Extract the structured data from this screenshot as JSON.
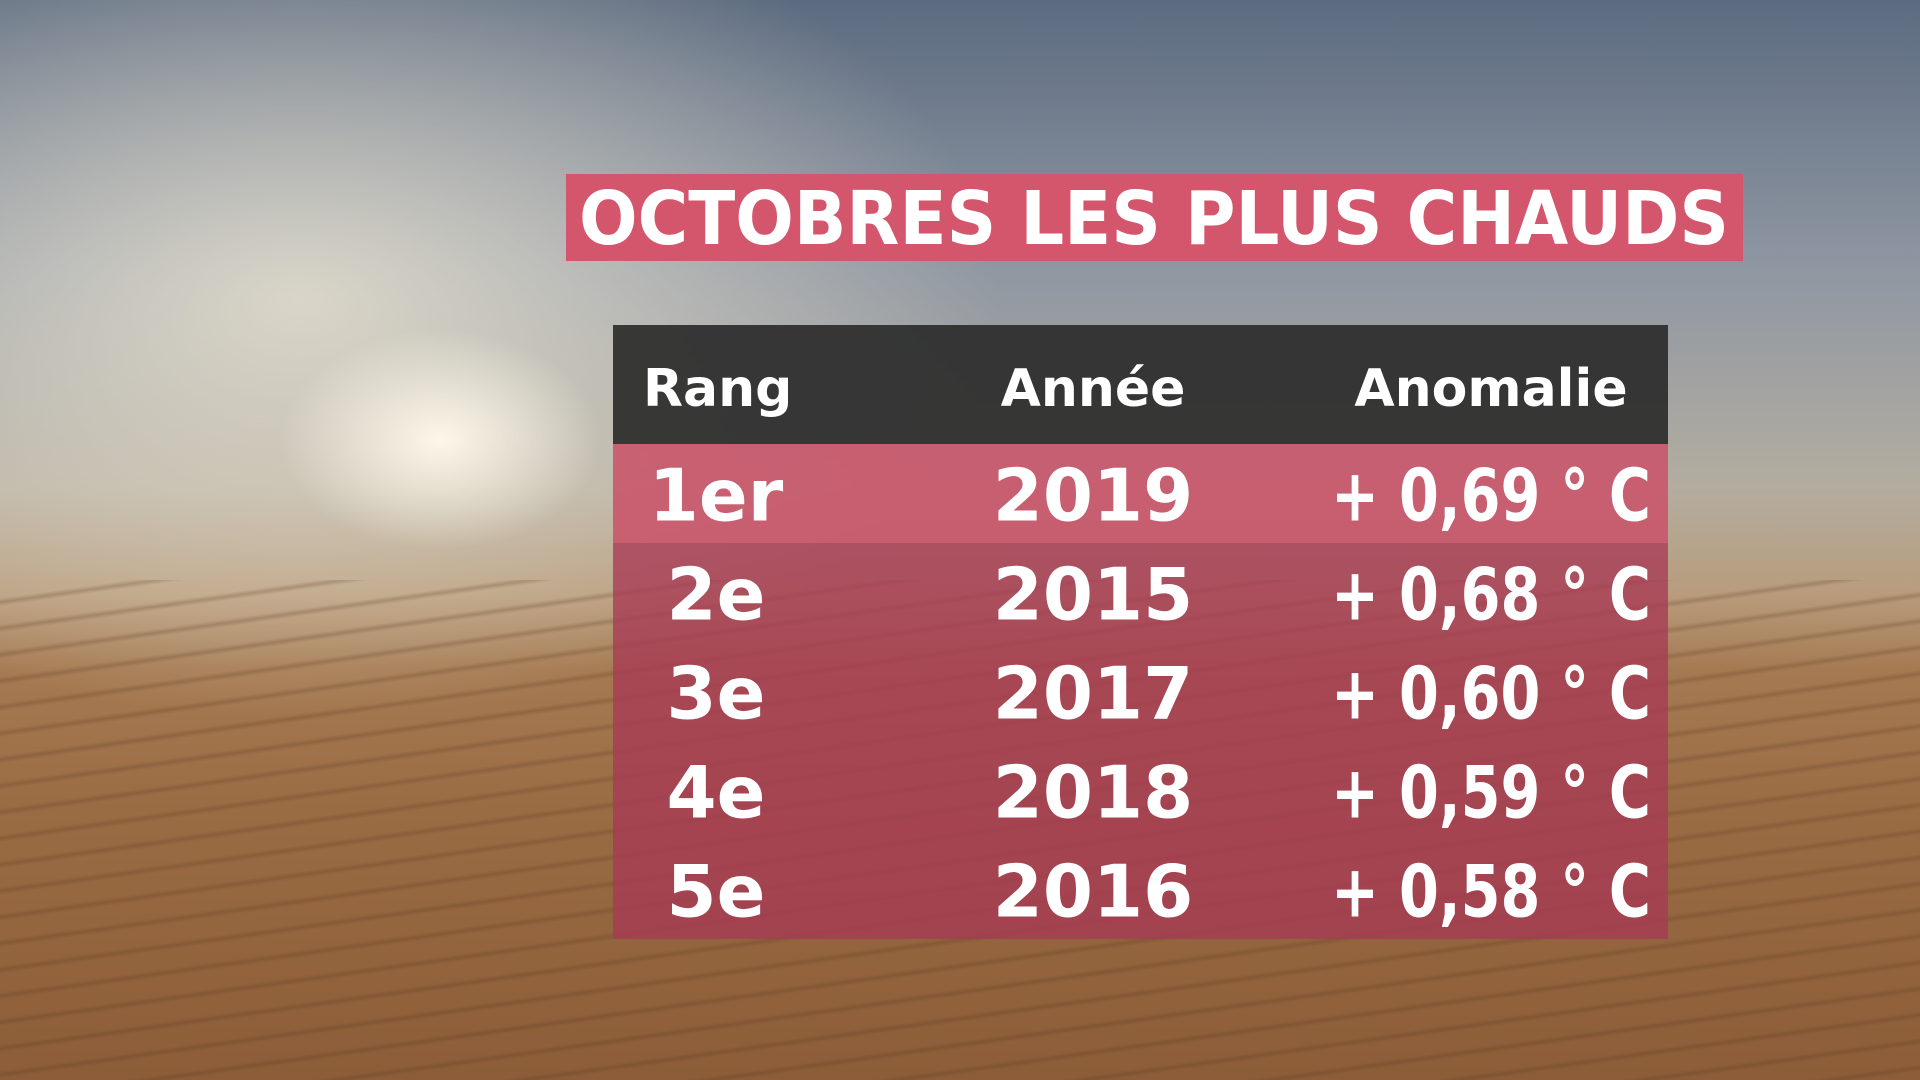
{
  "title": "OCTOBRES LES PLUS CHAUDS",
  "table": {
    "header": [
      "Rang",
      "Année",
      "Anomalie"
    ],
    "rows": [
      [
        "1er",
        "2019",
        "+ 0,69 ° C"
      ],
      [
        "2e",
        "2015",
        "+ 0,68 ° C"
      ],
      [
        "3e",
        "2017",
        "+ 0,60 ° C"
      ],
      [
        "4e",
        "2018",
        "+ 0,59 ° C"
      ],
      [
        "5e",
        "2016",
        "+ 0,58 ° C"
      ]
    ]
  }
}
